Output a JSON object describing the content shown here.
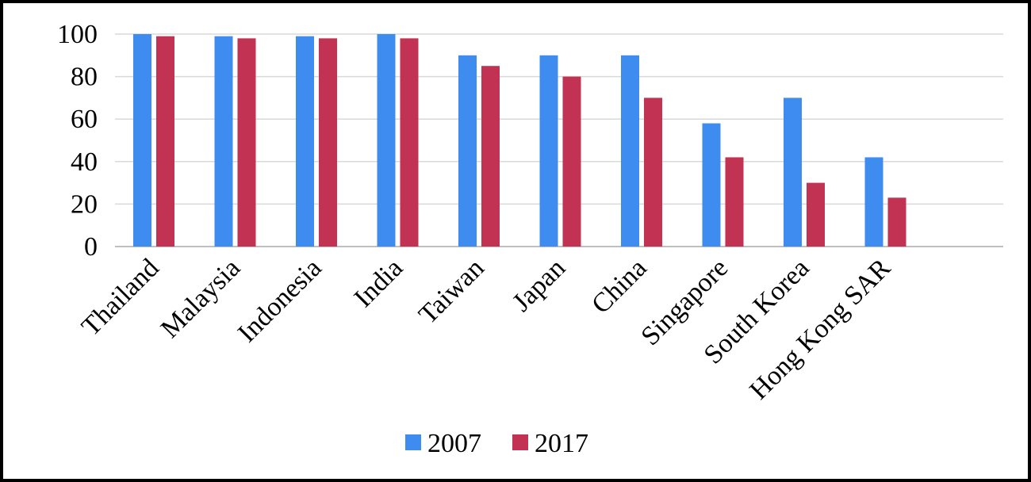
{
  "chart_data": {
    "type": "bar",
    "title": "",
    "xlabel": "",
    "ylabel": "",
    "categories": [
      "Thailand",
      "Malaysia",
      "Indonesia",
      "India",
      "Taiwan",
      "Japan",
      "China",
      "Singapore",
      "South Korea",
      "Hong Kong SAR"
    ],
    "series": [
      {
        "name": "2007",
        "color": "#3F8CF0",
        "values": [
          100,
          99,
          99,
          100,
          90,
          90,
          90,
          58,
          70,
          42
        ]
      },
      {
        "name": "2017",
        "color": "#C23253",
        "values": [
          99,
          98,
          98,
          98,
          85,
          80,
          70,
          42,
          30,
          23
        ]
      }
    ],
    "ylim": [
      0,
      100
    ],
    "yticks": [
      0,
      20,
      40,
      60,
      80,
      100
    ],
    "grid": true,
    "legend": "bottom"
  }
}
